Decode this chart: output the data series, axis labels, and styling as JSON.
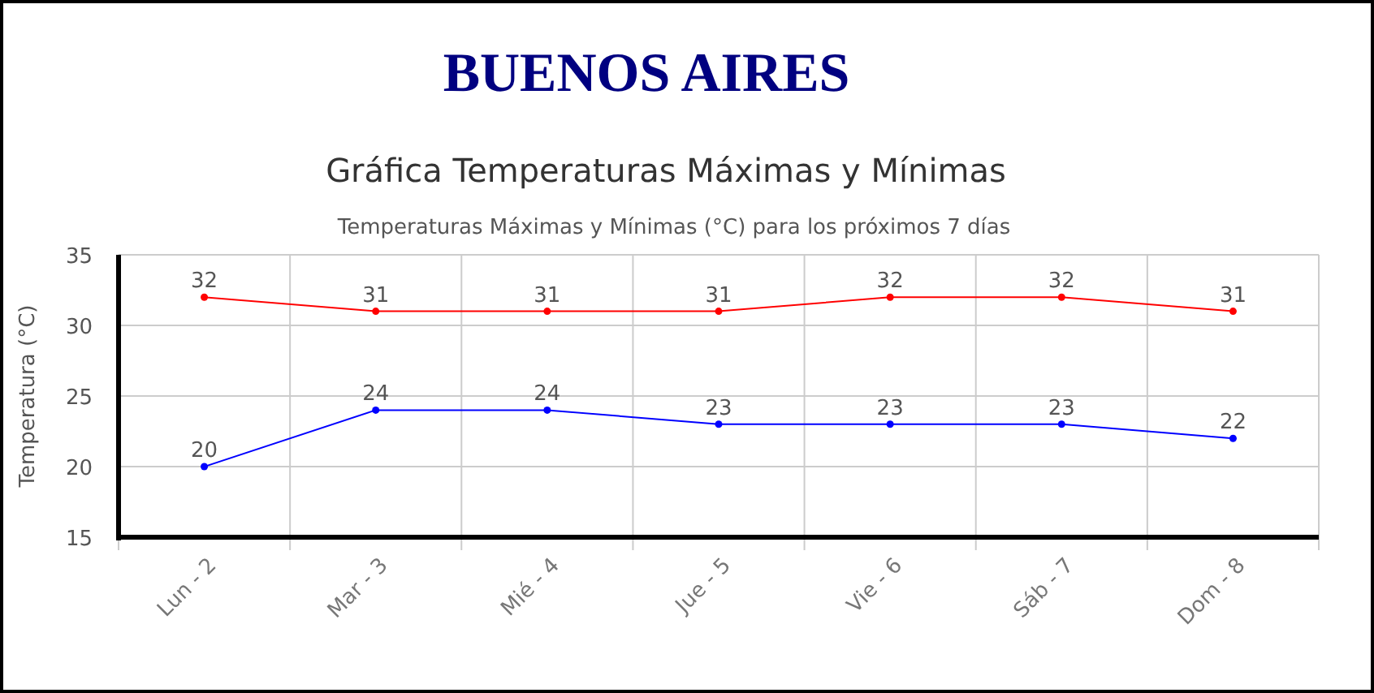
{
  "chart_data": {
    "type": "line",
    "title": "BUENOS AIRES",
    "subtitle": "Gráfica Temperaturas Máximas y Mínimas",
    "annotations": [
      "Temperaturas Máximas y Mínimas (°C) para los próximos 7 días"
    ],
    "ylabel": "Temperatura (°C)",
    "categories": [
      "Lun - 2",
      "Mar - 3",
      "Mié - 4",
      "Jue - 5",
      "Vie - 6",
      "Sáb - 7",
      "Dom - 8"
    ],
    "series": [
      {
        "color": "#ff0000",
        "values": [
          32,
          31,
          31,
          31,
          32,
          32,
          31
        ]
      },
      {
        "color": "#0000ff",
        "values": [
          20,
          24,
          24,
          23,
          23,
          23,
          22
        ]
      }
    ],
    "ylim": [
      15,
      35
    ],
    "yticks": [
      15,
      20,
      25,
      30,
      35
    ],
    "grid": true,
    "data_labels": true,
    "marker": "circle",
    "line_style": "solid"
  }
}
